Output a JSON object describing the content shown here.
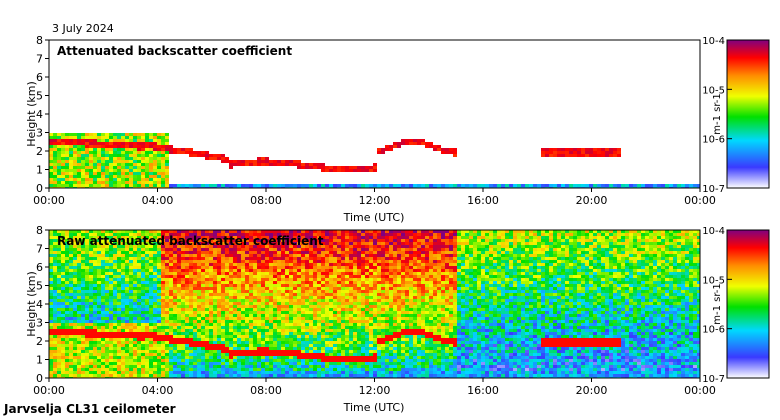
{
  "date_label": "3 July 2024",
  "footer_label": "Jarvselja CL31 ceilometer",
  "chart_data": [
    {
      "type": "heatmap",
      "title": "Attenuated backscatter coefficient",
      "xlabel": "Time (UTC)",
      "ylabel": "Height (km)",
      "xticks": [
        "00:00",
        "04:00",
        "08:00",
        "12:00",
        "16:00",
        "20:00",
        "00:00"
      ],
      "yticks": [
        "0",
        "1",
        "2",
        "3",
        "4",
        "5",
        "6",
        "7",
        "8"
      ],
      "xlim_hours": [
        0,
        24
      ],
      "ylim_km": [
        0,
        8
      ],
      "colorbar": {
        "scale": "log",
        "range": [
          1e-07,
          0.0001
        ],
        "ticks": [
          "10-7",
          "10-6",
          "10-5",
          "10-4"
        ],
        "unit": "m-1 sr-1",
        "colors": [
          "#ffffff",
          "#3030ff",
          "#00d0ff",
          "#00ff00",
          "#ffff00",
          "#ff8000",
          "#ff0000",
          "#800080"
        ]
      }
    },
    {
      "type": "heatmap",
      "title": "Raw attenuated backscatter coefficient",
      "xlabel": "Time (UTC)",
      "ylabel": "Height (km)",
      "xticks": [
        "00:00",
        "04:00",
        "08:00",
        "12:00",
        "16:00",
        "20:00",
        "00:00"
      ],
      "yticks": [
        "0",
        "1",
        "2",
        "3",
        "4",
        "5",
        "6",
        "7",
        "8"
      ],
      "xlim_hours": [
        0,
        24
      ],
      "ylim_km": [
        0,
        8
      ],
      "colorbar": {
        "scale": "log",
        "range": [
          1e-07,
          0.0001
        ],
        "ticks": [
          "10-7",
          "10-6",
          "10-5",
          "10-4"
        ],
        "unit": "m-1 sr-1",
        "colors": [
          "#ffffff",
          "#3030ff",
          "#00d0ff",
          "#00ff00",
          "#ffff00",
          "#ff8000",
          "#ff0000",
          "#800080"
        ]
      }
    }
  ]
}
